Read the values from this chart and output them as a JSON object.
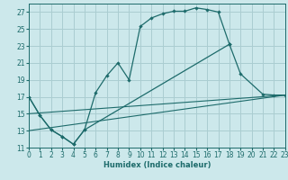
{
  "xlabel": "Humidex (Indice chaleur)",
  "bg_color": "#cce8eb",
  "grid_color": "#aacdd1",
  "line_color": "#1d6b6b",
  "xlim": [
    0,
    23
  ],
  "ylim": [
    11,
    28
  ],
  "yticks": [
    11,
    13,
    15,
    17,
    19,
    21,
    23,
    25,
    27
  ],
  "xticks": [
    0,
    1,
    2,
    3,
    4,
    5,
    6,
    7,
    8,
    9,
    10,
    11,
    12,
    13,
    14,
    15,
    16,
    17,
    18,
    19,
    20,
    21,
    22,
    23
  ],
  "curve_main_x": [
    0,
    1,
    2,
    3,
    4,
    5,
    6,
    7,
    8,
    9,
    10,
    11,
    12,
    13,
    14,
    15,
    16,
    17,
    18
  ],
  "curve_main_y": [
    17.0,
    14.8,
    13.1,
    12.3,
    11.4,
    13.1,
    17.5,
    19.5,
    21.0,
    19.0,
    25.3,
    26.3,
    26.8,
    27.1,
    27.1,
    27.5,
    27.3,
    27.0,
    23.2
  ],
  "curve_b_x": [
    0,
    1,
    2,
    3,
    4,
    5,
    18,
    19,
    21,
    22,
    23
  ],
  "curve_b_y": [
    17.0,
    14.8,
    13.1,
    12.3,
    11.4,
    13.1,
    23.2,
    19.7,
    17.3,
    17.2,
    17.2
  ],
  "line1_x": [
    0,
    23
  ],
  "line1_y": [
    13.0,
    17.2
  ],
  "line2_x": [
    0,
    23
  ],
  "line2_y": [
    15.0,
    17.2
  ]
}
